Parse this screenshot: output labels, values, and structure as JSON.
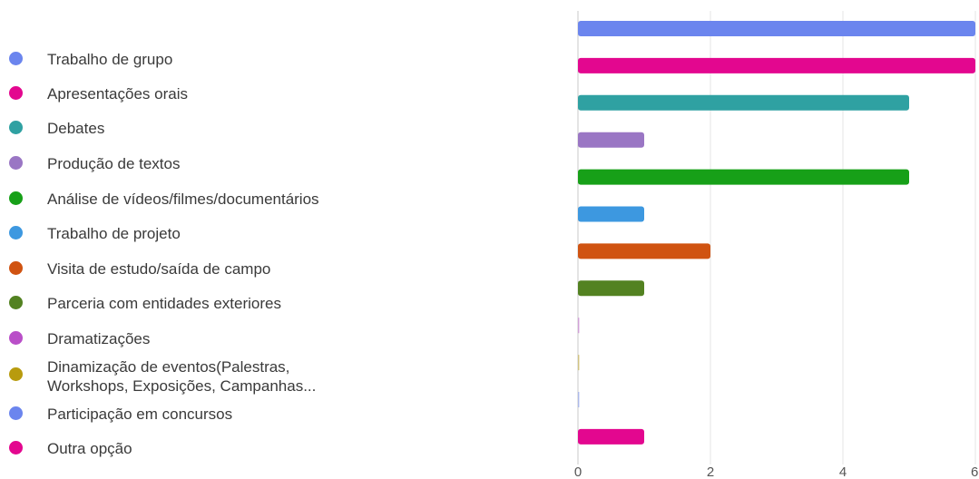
{
  "chart_data": {
    "type": "bar",
    "orientation": "horizontal",
    "categories": [
      "Trabalho de grupo",
      "Apresentações orais",
      "Debates",
      "Produção de textos",
      "Análise de vídeos/filmes/documentários",
      "Trabalho de projeto",
      "Visita de estudo/saída de campo",
      "Parceria com entidades exteriores",
      "Dramatizações",
      "Dinamização de eventos(Palestras,\nWorkshops, Exposições, Campanhas...",
      "Participação em concursos",
      "Outra opção"
    ],
    "values": [
      6,
      6,
      5,
      1,
      5,
      1,
      2,
      1,
      0,
      0,
      0,
      1
    ],
    "colors": [
      "#6b85ee",
      "#e3078f",
      "#2fa1a2",
      "#9a76c4",
      "#17a018",
      "#3d98e0",
      "#d05311",
      "#538221",
      "#b94fc8",
      "#b89b0e",
      "#6b85ee",
      "#e3078f"
    ],
    "xlim": [
      0,
      6
    ],
    "xticks": [
      "0",
      "2",
      "4",
      "6"
    ],
    "grid": true,
    "legend": "left",
    "title": "",
    "xlabel": "",
    "ylabel": ""
  }
}
